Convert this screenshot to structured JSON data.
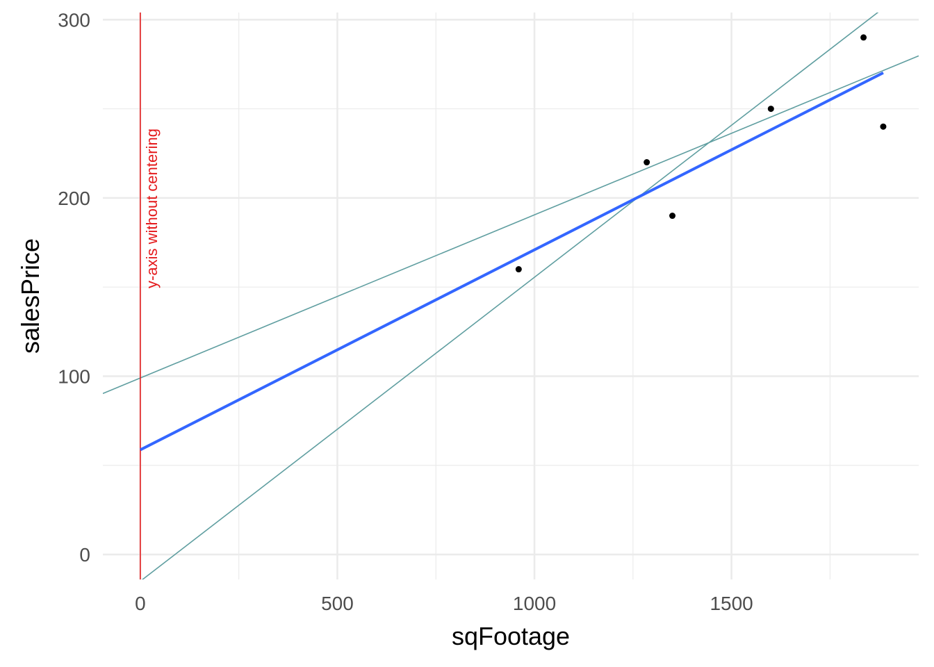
{
  "chart_data": {
    "type": "scatter",
    "xlabel": "sqFootage",
    "ylabel": "salesPrice",
    "xlim": [
      -95,
      1975
    ],
    "ylim": [
      -14,
      304
    ],
    "x_ticks": [
      0,
      500,
      1000,
      1500
    ],
    "y_ticks": [
      0,
      100,
      200,
      300
    ],
    "grid": true,
    "points": [
      {
        "x": 960,
        "y": 160
      },
      {
        "x": 1285,
        "y": 220
      },
      {
        "x": 1350,
        "y": 190
      },
      {
        "x": 1600,
        "y": 250
      },
      {
        "x": 1835,
        "y": 290
      },
      {
        "x": 1885,
        "y": 240
      }
    ],
    "fit_line": {
      "x_start": 0,
      "x_end": 1885,
      "intercept": 58.7,
      "slope": 0.1122,
      "color": "#3366ff"
    },
    "reference_lines": [
      {
        "intercept": 99,
        "slope": 0.0915,
        "color": "#5f9ea0"
      },
      {
        "intercept": -15,
        "slope": 0.1705,
        "color": "#5f9ea0"
      }
    ],
    "vline": {
      "x": 0,
      "color": "#e41a1c",
      "label": "y-axis without centering"
    }
  }
}
